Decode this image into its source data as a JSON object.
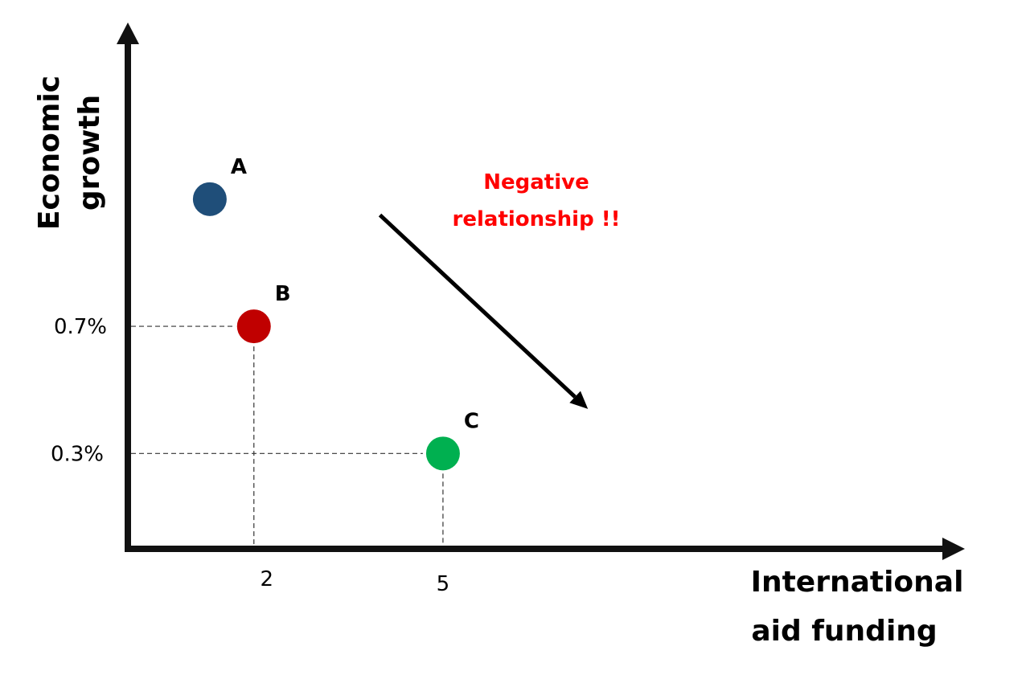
{
  "chart_data": {
    "type": "scatter",
    "title": "",
    "xlabel_lines": [
      "International",
      "aid funding"
    ],
    "ylabel_lines": [
      "Economic",
      "growth"
    ],
    "x_ticks": [
      {
        "value": 2,
        "label": "2"
      },
      {
        "value": 5,
        "label": "5"
      }
    ],
    "y_ticks": [
      {
        "value": 0.7,
        "label": "0.7%"
      },
      {
        "value": 0.3,
        "label": "0.3%"
      }
    ],
    "xlim": [
      0,
      13
    ],
    "ylim": [
      0,
      1.6
    ],
    "grid": false,
    "points": [
      {
        "label": "A",
        "x": 1.3,
        "y": 1.1,
        "color": "#1f4e79",
        "guides": false
      },
      {
        "label": "B",
        "x": 2,
        "y": 0.7,
        "color": "#c00000",
        "guides": true
      },
      {
        "label": "C",
        "x": 5,
        "y": 0.3,
        "color": "#00b050",
        "guides": true
      }
    ],
    "annotation": {
      "lines": [
        "Negative",
        "relationship !!"
      ],
      "color": "#ff0000",
      "arrow_from": {
        "x": 4,
        "y": 1.05
      },
      "arrow_to": {
        "x": 7.3,
        "y": 0.44
      }
    }
  }
}
